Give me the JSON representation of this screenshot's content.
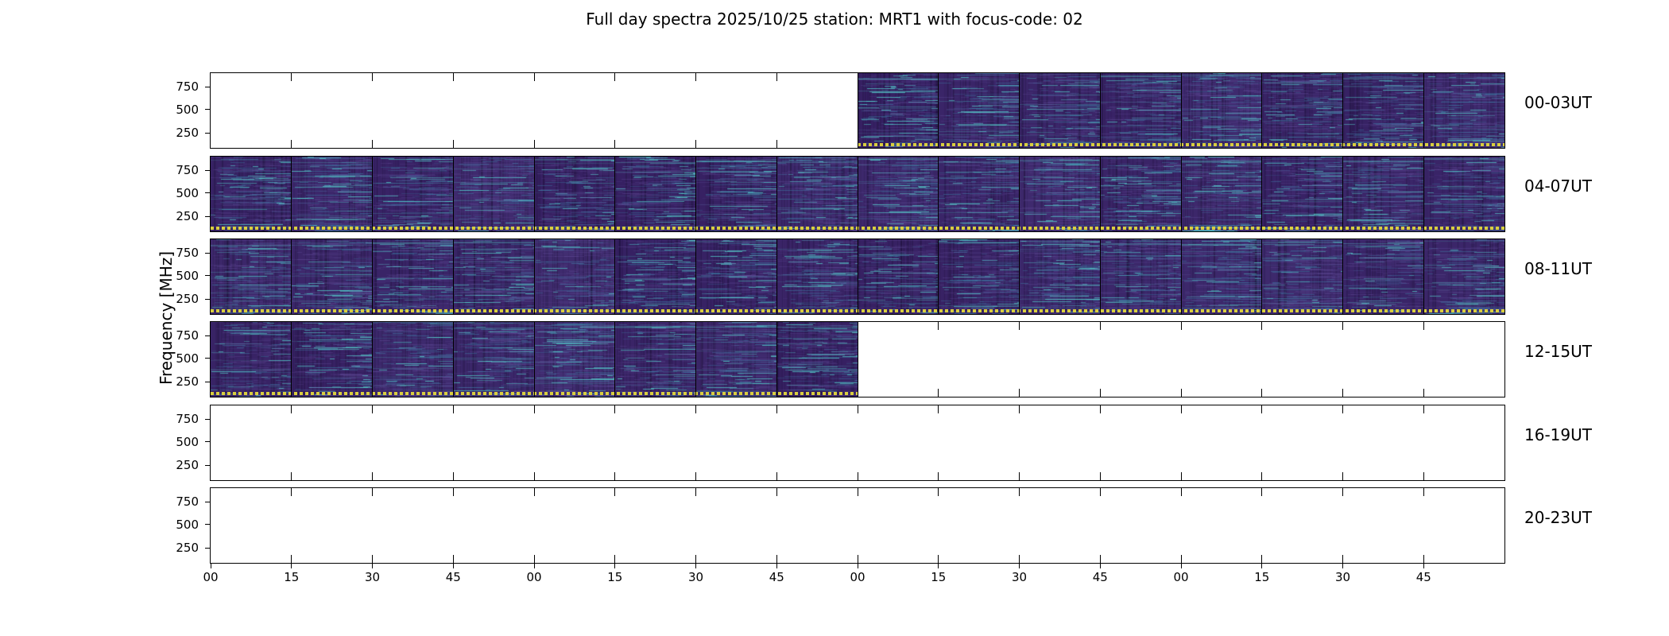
{
  "title": "Full day spectra 2025/10/25 station: MRT1 with focus-code: 02",
  "ylabel": "Frequency [MHz]",
  "chart_data": {
    "type": "heatmap",
    "title": "Full day spectra 2025/10/25 station: MRT1 with focus-code: 02",
    "ylabel": "Frequency [MHz]",
    "y_tick_labels": [
      "750",
      "500",
      "250"
    ],
    "ylim_mhz_estimate": [
      75,
      910
    ],
    "x_tick_labels": [
      "00",
      "15",
      "30",
      "45",
      "00",
      "15",
      "30",
      "45",
      "00",
      "15",
      "30",
      "45",
      "00",
      "15",
      "30",
      "45"
    ],
    "segments_per_row": 16,
    "segment_minutes": 15,
    "hours_per_row": 4,
    "legend_position": "none",
    "grid": false,
    "colors": {
      "background": "#ffffff",
      "panel_border": "#000000",
      "spectrogram_base": "#3a2468",
      "streak_teal": "#56d6d0",
      "streak_blue": "#3e8eb2",
      "bottom_marker": "#d9ce3f"
    },
    "rows": [
      {
        "label": "00-03UT",
        "data_segments": {
          "start": 8,
          "end": 16
        }
      },
      {
        "label": "04-07UT",
        "data_segments": {
          "start": 0,
          "end": 16
        }
      },
      {
        "label": "08-11UT",
        "data_segments": {
          "start": 0,
          "end": 16
        }
      },
      {
        "label": "12-15UT",
        "data_segments": {
          "start": 0,
          "end": 8
        }
      },
      {
        "label": "16-19UT",
        "data_segments": {
          "start": 0,
          "end": 0
        }
      },
      {
        "label": "20-23UT",
        "data_segments": {
          "start": 0,
          "end": 0
        }
      }
    ]
  }
}
